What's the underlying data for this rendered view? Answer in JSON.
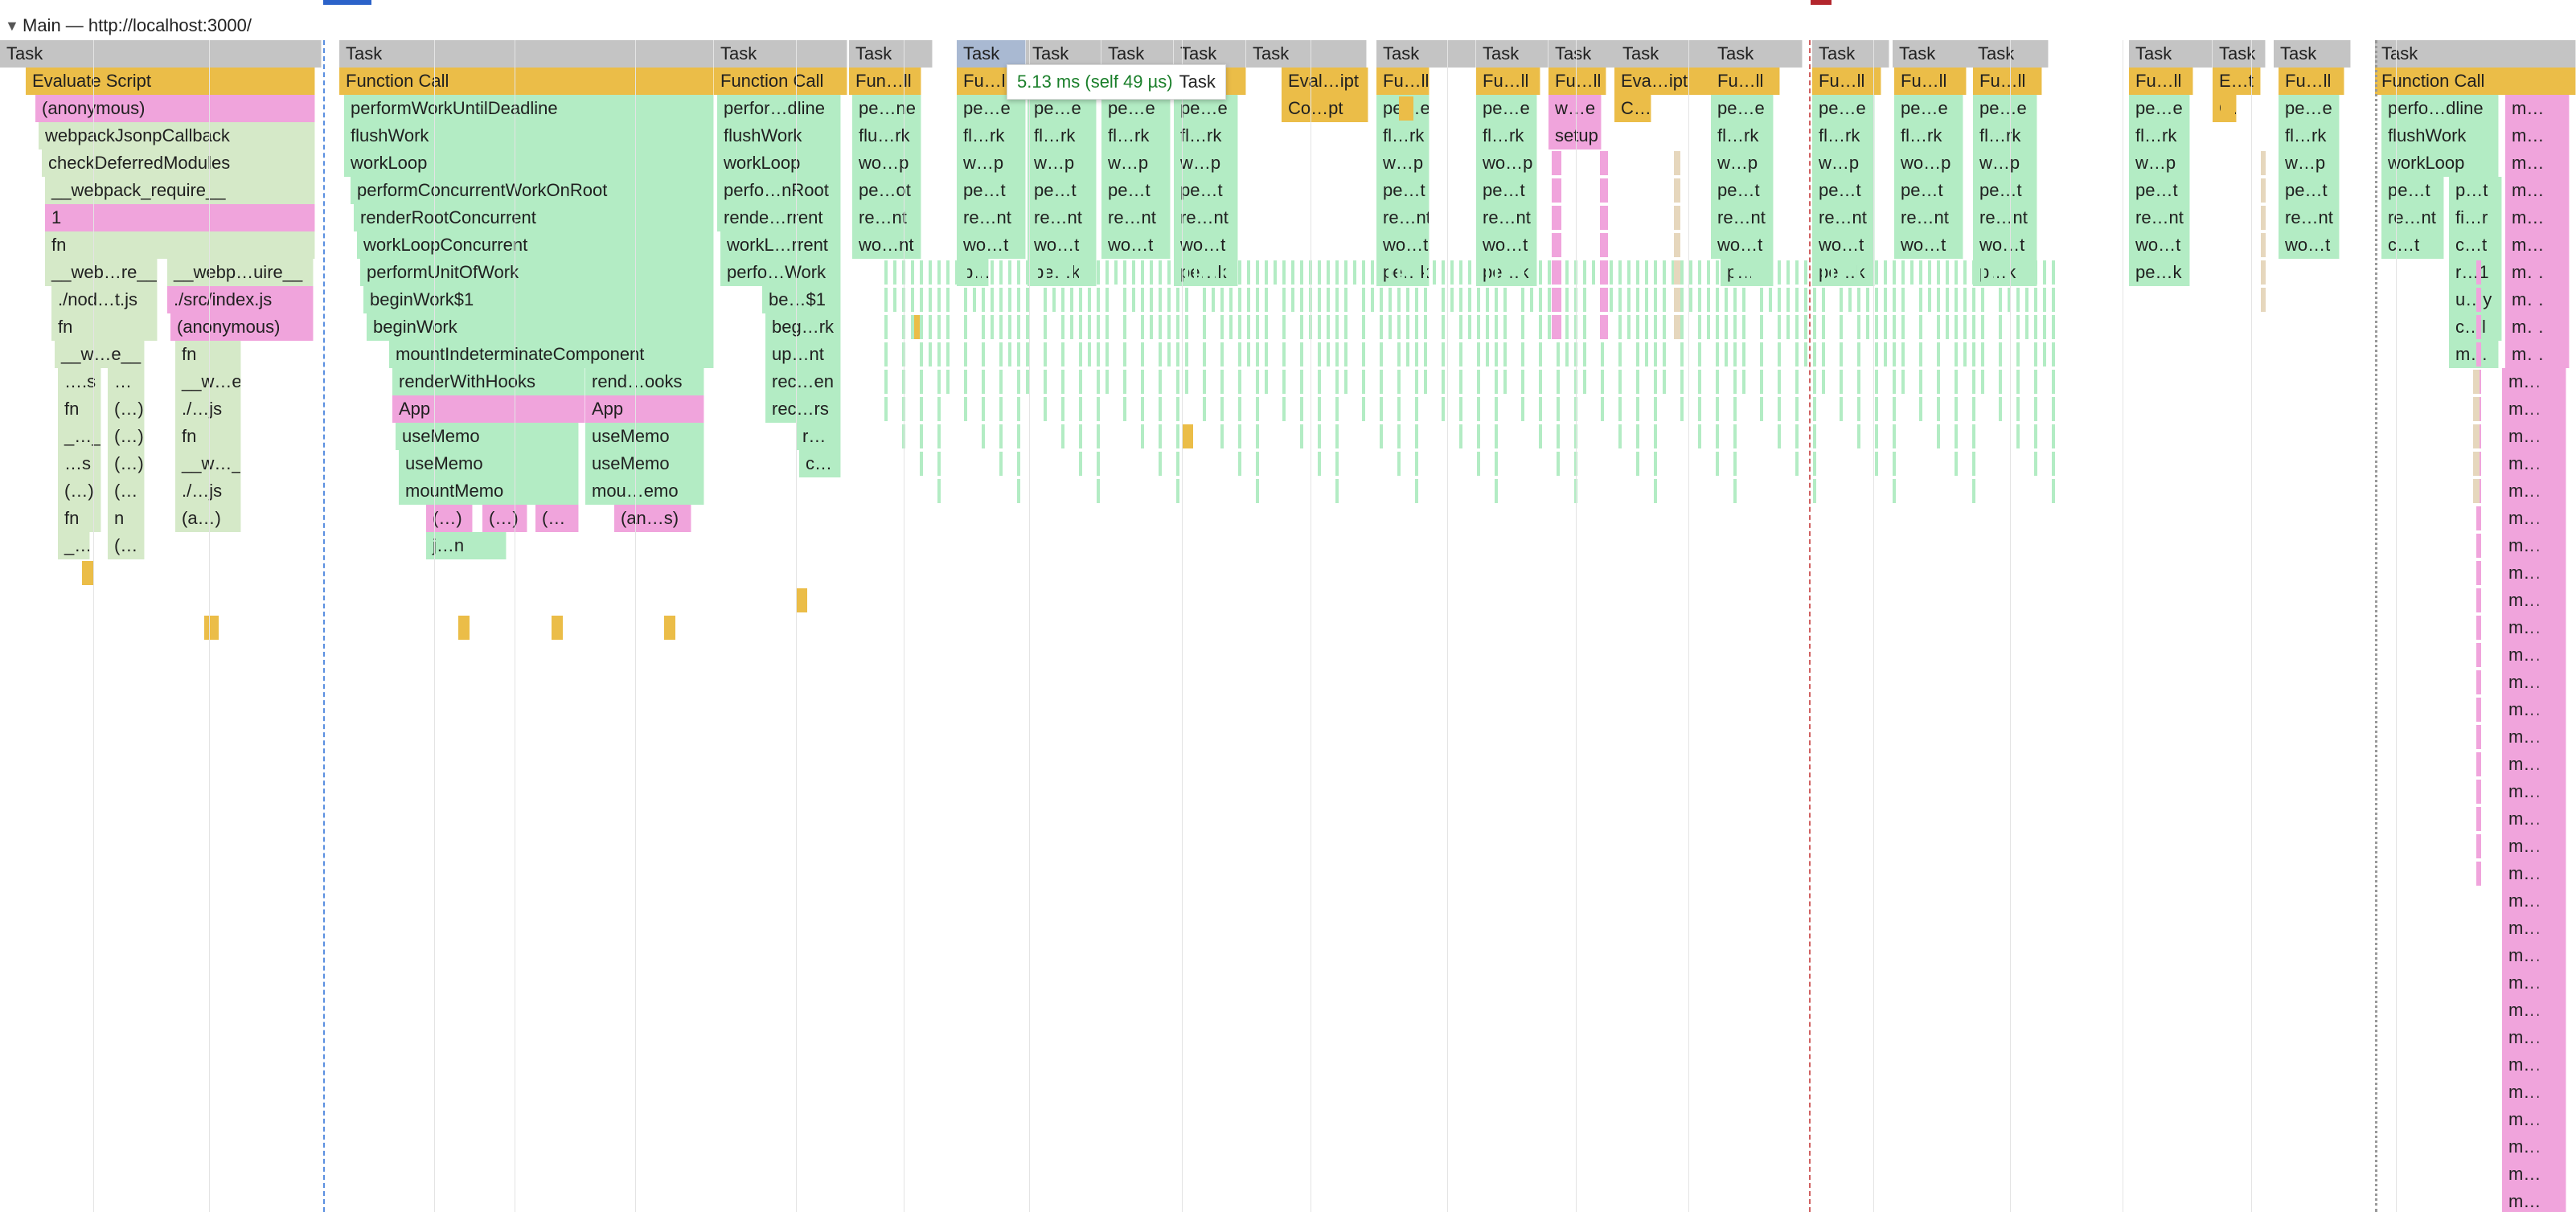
{
  "header": {
    "collapse_icon": "triangle-down-icon",
    "title": "Main — http://localhost:3000/"
  },
  "tooltip": {
    "duration": "5.13 ms (self 49 µs)",
    "name": "Task"
  },
  "colors": {
    "task": "#c4c4c4",
    "task_selected": "#a9b9d2",
    "script": "#ebbd48",
    "fn": "#b3ecc4",
    "anon": "#f0a4dc",
    "dim": "#d5e9c8",
    "beige": "#e6d7bd"
  },
  "labels": [
    "Task",
    "Evaluate Script",
    "(anonymous)",
    "webpackJsonpCallback",
    "checkDeferredModules",
    "__webpack_require__",
    "1",
    "fn",
    "__web…re__",
    "__webp…uire__",
    "./nod…t.js",
    "./src/index.js",
    "__w…e__",
    "….s",
    "…",
    "__w…_",
    "(…)",
    "./…js",
    "_…_",
    "…s",
    "(…)",
    "(…",
    "n",
    "(…",
    "(a…)",
    "Function Call",
    "performWorkUntilDeadline",
    "flushWork",
    "workLoop",
    "performConcurrentWorkOnRoot",
    "renderRootConcurrent",
    "workLoopConcurrent",
    "performUnitOfWork",
    "beginWork$1",
    "beginWork",
    "mountIndeterminateComponent",
    "renderWithHooks",
    "rend…ooks",
    "App",
    "useMemo",
    "mountMemo",
    "mou…emo",
    "(an…s)",
    "j…n",
    "perfor…dline",
    "perfo…nRoot",
    "rende…rrent",
    "workL…rrent",
    "perfo…Work",
    "be…$1",
    "beg…rk",
    "up…nt",
    "rec…en",
    "rec…rs",
    "r…",
    "c…",
    "Fun…ll",
    "pe…ne",
    "flu…rk",
    "wo…p",
    "pe…ot",
    "re…nt",
    "wo…nt",
    "Fu…ll",
    "pe…e",
    "fl…rk",
    "w…p",
    "pe…t",
    "wo…t",
    "p…",
    "pe…k",
    "Eval…ipt",
    "Co…pt",
    "pe…k",
    "fl…rk",
    "wo…p",
    "w…e",
    "setup",
    "Eva…ipt",
    "C…",
    "wo…p",
    "E…t",
    "perfo…dline",
    "re…nt",
    "p…t",
    "fi…r",
    "c…t",
    "r…1",
    "u…y",
    "c…l",
    "m…",
    "wo…t",
    "p…k"
  ]
}
